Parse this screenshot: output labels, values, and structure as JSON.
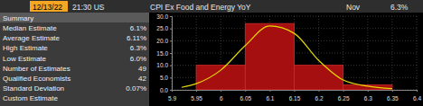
{
  "header": {
    "date": "12/13/22",
    "time": "21:30 US",
    "title": "CPI Ex Food and Energy YoY",
    "period": "Nov",
    "value": "6.3%"
  },
  "summary": {
    "title": "Summary",
    "rows": [
      {
        "label": "Median Estimate",
        "value": "6.1%"
      },
      {
        "label": "Average Estimate",
        "value": "6.11%"
      },
      {
        "label": "High Estimate",
        "value": "6.3%"
      },
      {
        "label": "Low Estimate",
        "value": "6.0%"
      },
      {
        "label": "Number of Estimates",
        "value": "49"
      },
      {
        "label": "Qualified Economists",
        "value": "42"
      },
      {
        "label": "Standard Deviation",
        "value": "0.07%"
      },
      {
        "label": "Custom Estimate"
      }
    ]
  },
  "chart_data": {
    "type": "histogram",
    "bins": [
      5.95,
      6.05,
      6.15,
      6.25,
      6.35
    ],
    "values": [
      10,
      27,
      10,
      2
    ],
    "color": "#a50f0f",
    "series": [
      {
        "type": "line",
        "color": "#e6d800",
        "x": [
          5.92,
          5.95,
          6.0,
          6.05,
          6.1,
          6.15,
          6.2,
          6.25,
          6.3,
          6.35
        ],
        "values": [
          1,
          2.5,
          8,
          18,
          26,
          23,
          12,
          4,
          1.5,
          0.5
        ]
      }
    ],
    "xlim": [
      5.9,
      6.4
    ],
    "xticks": [
      5.9,
      5.95,
      6,
      6.05,
      6.1,
      6.15,
      6.2,
      6.25,
      6.3,
      6.35,
      6.4
    ],
    "ylim": [
      0,
      30
    ],
    "yticks": [
      {
        "value": 0,
        "label": "0.0"
      },
      {
        "value": 5,
        "label": "5.0"
      },
      {
        "value": 10,
        "label": "10.0"
      },
      {
        "value": 15,
        "label": "15.0"
      },
      {
        "value": 20,
        "label": "20.0"
      },
      {
        "value": 25,
        "label": "25.0"
      },
      {
        "value": 30,
        "label": "30.0"
      }
    ],
    "grid": true
  }
}
